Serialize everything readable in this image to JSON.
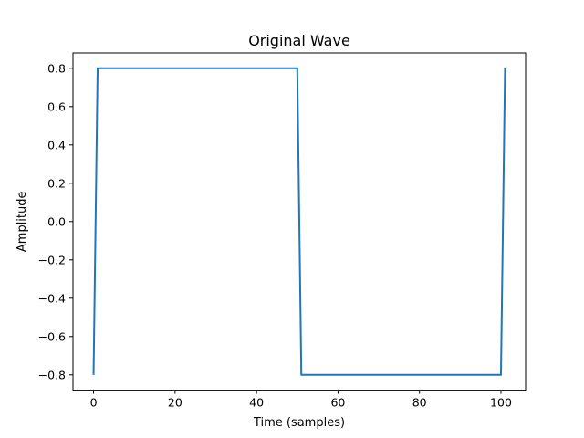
{
  "chart_data": {
    "type": "line",
    "title": "Original Wave",
    "xlabel": "Time (samples)",
    "ylabel": "Amplitude",
    "xlim": [
      -5.05,
      106.05
    ],
    "ylim": [
      -0.88,
      0.88
    ],
    "xticks": [
      0,
      20,
      40,
      60,
      80,
      100
    ],
    "xtick_labels": [
      "0",
      "20",
      "40",
      "60",
      "80",
      "100"
    ],
    "yticks": [
      -0.8,
      -0.6,
      -0.4,
      -0.2,
      0.0,
      0.2,
      0.4,
      0.6,
      0.8
    ],
    "ytick_labels": [
      "−0.8",
      "−0.6",
      "−0.4",
      "−0.2",
      "0.0",
      "0.2",
      "0.4",
      "0.6",
      "0.8"
    ],
    "grid": false,
    "series": [
      {
        "color": "#1f77b4",
        "x": [
          0,
          1,
          50,
          51,
          100,
          101
        ],
        "y": [
          -0.8,
          0.8,
          0.8,
          -0.8,
          -0.8,
          0.8
        ]
      }
    ]
  }
}
